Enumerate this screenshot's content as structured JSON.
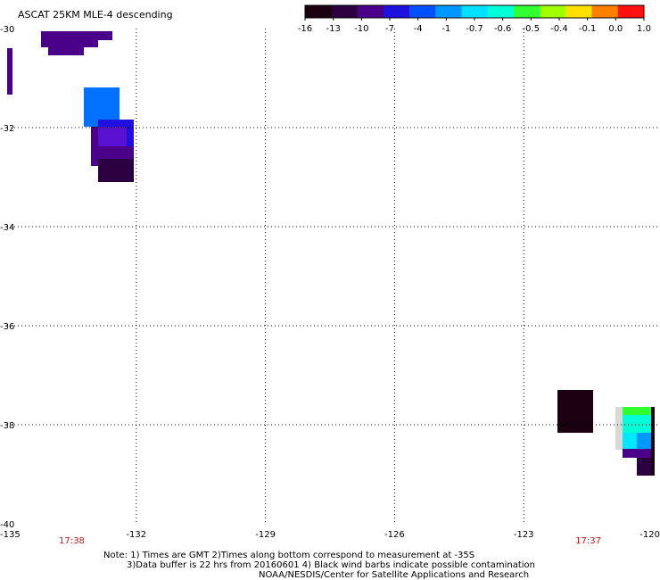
{
  "title": "ASCAT 25KM MLE-4 descending",
  "colorbar": {
    "labels": [
      "-16",
      "-13",
      "-10",
      "-7",
      "-4",
      "-1",
      "-0.7",
      "-0.6",
      "-0.5",
      "-0.4",
      "-0.1",
      "0.0",
      "1.0"
    ],
    "colors": [
      "#1a0010",
      "#2a0040",
      "#4a0088",
      "#2010e0",
      "#0050ff",
      "#0098ff",
      "#00e0ff",
      "#00ffd8",
      "#30ff30",
      "#a0ff00",
      "#ffe000",
      "#ff8000",
      "#ff1010"
    ]
  },
  "map": {
    "lon_range": [
      -135,
      -120
    ],
    "lat_range": [
      -40,
      -30
    ],
    "lon_labels": [
      "-135",
      "-132",
      "-129",
      "-126",
      "-123",
      "-120"
    ],
    "lat_labels": [
      "-30",
      "-32",
      "-34",
      "-36",
      "-38",
      "-40"
    ],
    "time_labels": [
      "17:38",
      "17:37"
    ],
    "time_color": "#d01010"
  },
  "notes": {
    "line1": "Note: 1) Times are GMT 2)Times along bottom correspond to measurement at -35S",
    "line2": "3)Data buffer is 22 hrs from 20160601 4) Black wind barbs indicate possible contamination",
    "line3": "NOAA/NESDIS/Center for Satellite Applications and Research"
  }
}
